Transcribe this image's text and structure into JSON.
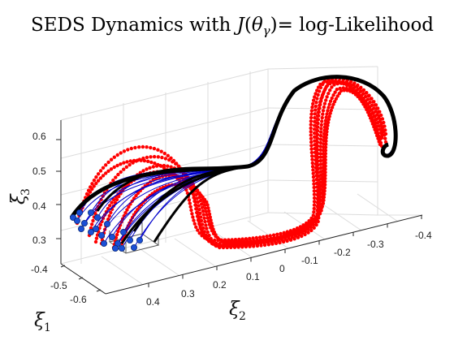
{
  "chart_data": {
    "type": "scatter",
    "projection": "3d",
    "title": "SEDS Dynamics with J(θγ)= log-Likelihood",
    "title_parts": {
      "prefix": "SEDS Dynamics with ",
      "func": "J",
      "open": "(",
      "theta": "θ",
      "sub": "γ",
      "close": ")",
      "suffix": "= log-Likelihood"
    },
    "axes": {
      "x": {
        "symbol": "ξ",
        "sub": "1",
        "ticks": [
          "-0.4",
          "-0.5",
          "-0.6"
        ],
        "range": [
          -0.65,
          -0.4
        ]
      },
      "y": {
        "symbol": "ξ",
        "sub": "2",
        "ticks": [
          "0.4",
          "0.3",
          "0.2",
          "0.1",
          "0",
          "-0.1",
          "-0.2",
          "-0.3",
          "-0.4"
        ],
        "range": [
          -0.4,
          0.4
        ]
      },
      "z": {
        "symbol": "ξ",
        "sub": "3",
        "ticks": [
          "0.6",
          "0.5",
          "0.4",
          "0.3"
        ],
        "range": [
          0.28,
          0.62
        ]
      }
    },
    "grid": true,
    "series": [
      {
        "role": "SEDS reproductions",
        "color": "#0000cc"
      },
      {
        "role": "demonstrations",
        "color": "#ff0000"
      },
      {
        "role": "streamlines",
        "color": "#000000"
      },
      {
        "role": "initial points",
        "color": "#1a4fd6"
      }
    ]
  }
}
